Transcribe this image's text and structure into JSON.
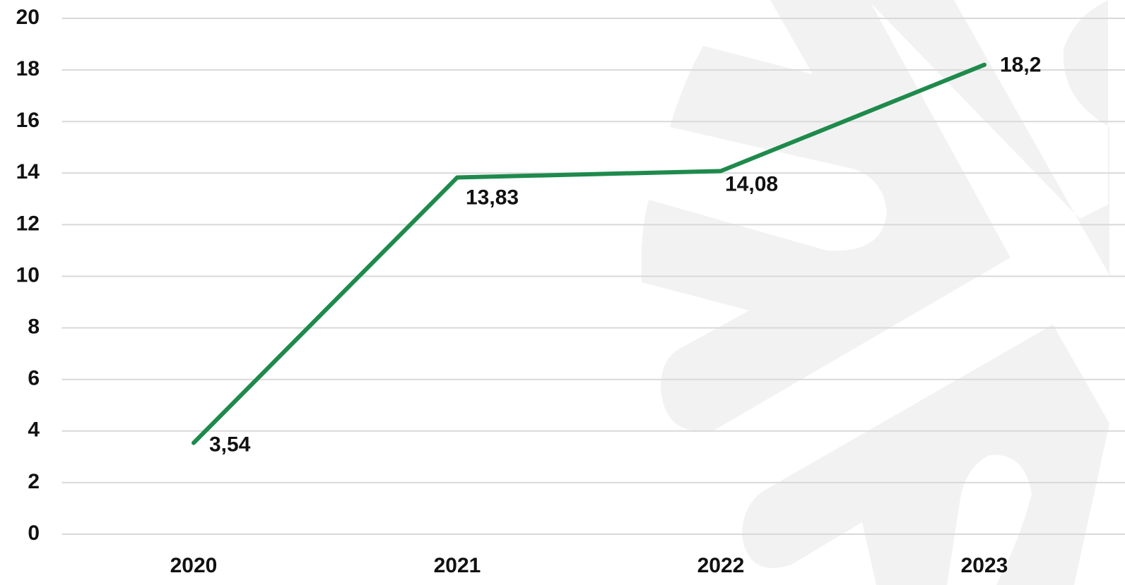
{
  "chart_data": {
    "type": "line",
    "categories": [
      "2020",
      "2021",
      "2022",
      "2023"
    ],
    "series": [
      {
        "color": "#1e8a4c",
        "values": [
          3.54,
          13.83,
          14.08,
          18.2
        ],
        "value_labels": [
          "3,54",
          "13,83",
          "14,08",
          "18,2"
        ]
      }
    ],
    "ylim": [
      0,
      20
    ],
    "yticks": [
      0,
      2,
      4,
      6,
      8,
      10,
      12,
      14,
      16,
      18,
      20
    ],
    "grid": true
  }
}
